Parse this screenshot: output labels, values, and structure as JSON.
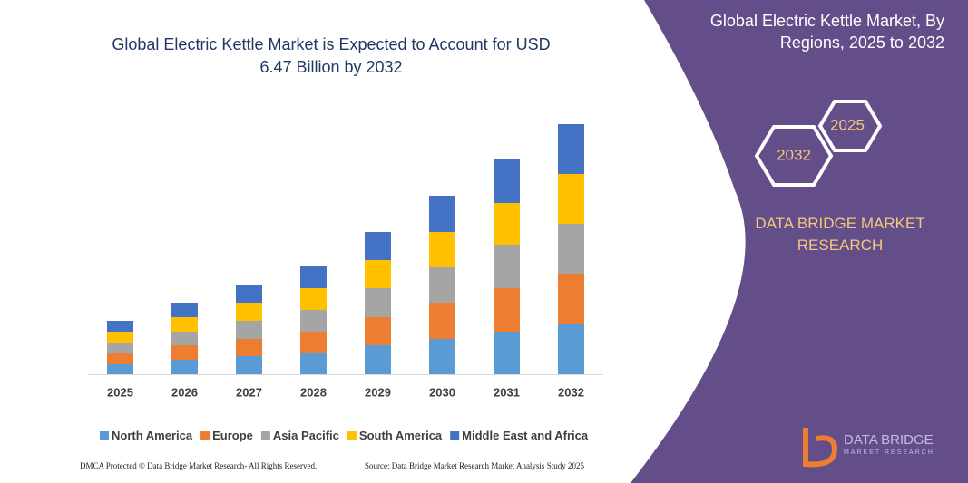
{
  "chart_data": {
    "type": "stacked_bar",
    "title": "Global Electric Kettle Market is Expected to Account for USD 6.47 Billion by 2032",
    "categories": [
      "2025",
      "2026",
      "2027",
      "2028",
      "2029",
      "2030",
      "2031",
      "2032"
    ],
    "series": [
      {
        "name": "North America",
        "color": "#5b9bd5",
        "values": [
          11,
          16,
          20,
          24,
          32,
          39,
          47,
          55
        ]
      },
      {
        "name": "Europe",
        "color": "#ed7d31",
        "values": [
          12,
          16,
          19,
          23,
          31,
          40,
          48,
          56
        ]
      },
      {
        "name": "Asia Pacific",
        "color": "#a5a5a5",
        "values": [
          12,
          15,
          20,
          24,
          32,
          39,
          48,
          55
        ]
      },
      {
        "name": "South America",
        "color": "#ffc000",
        "values": [
          12,
          16,
          20,
          24,
          31,
          39,
          46,
          55
        ]
      },
      {
        "name": "Middle East and Africa",
        "color": "#4472c4",
        "values": [
          12,
          16,
          20,
          24,
          31,
          40,
          48,
          55
        ]
      }
    ],
    "legend": "bottom"
  },
  "panel": {
    "title": "Global Electric Kettle Market, By Regions, 2025 to 2032",
    "hexagons": [
      "2025",
      "2032"
    ],
    "brand": "DATA BRIDGE MARKET RESEARCH",
    "logo": {
      "name": "DATA BRIDGE",
      "tagline": "MARKET RESEARCH"
    }
  },
  "footer": {
    "left": "DMCA Protected © Data Bridge Market Research- All Rights Reserved.",
    "right": "Source: Data Bridge Market Research Market Analysis Study 2025"
  }
}
